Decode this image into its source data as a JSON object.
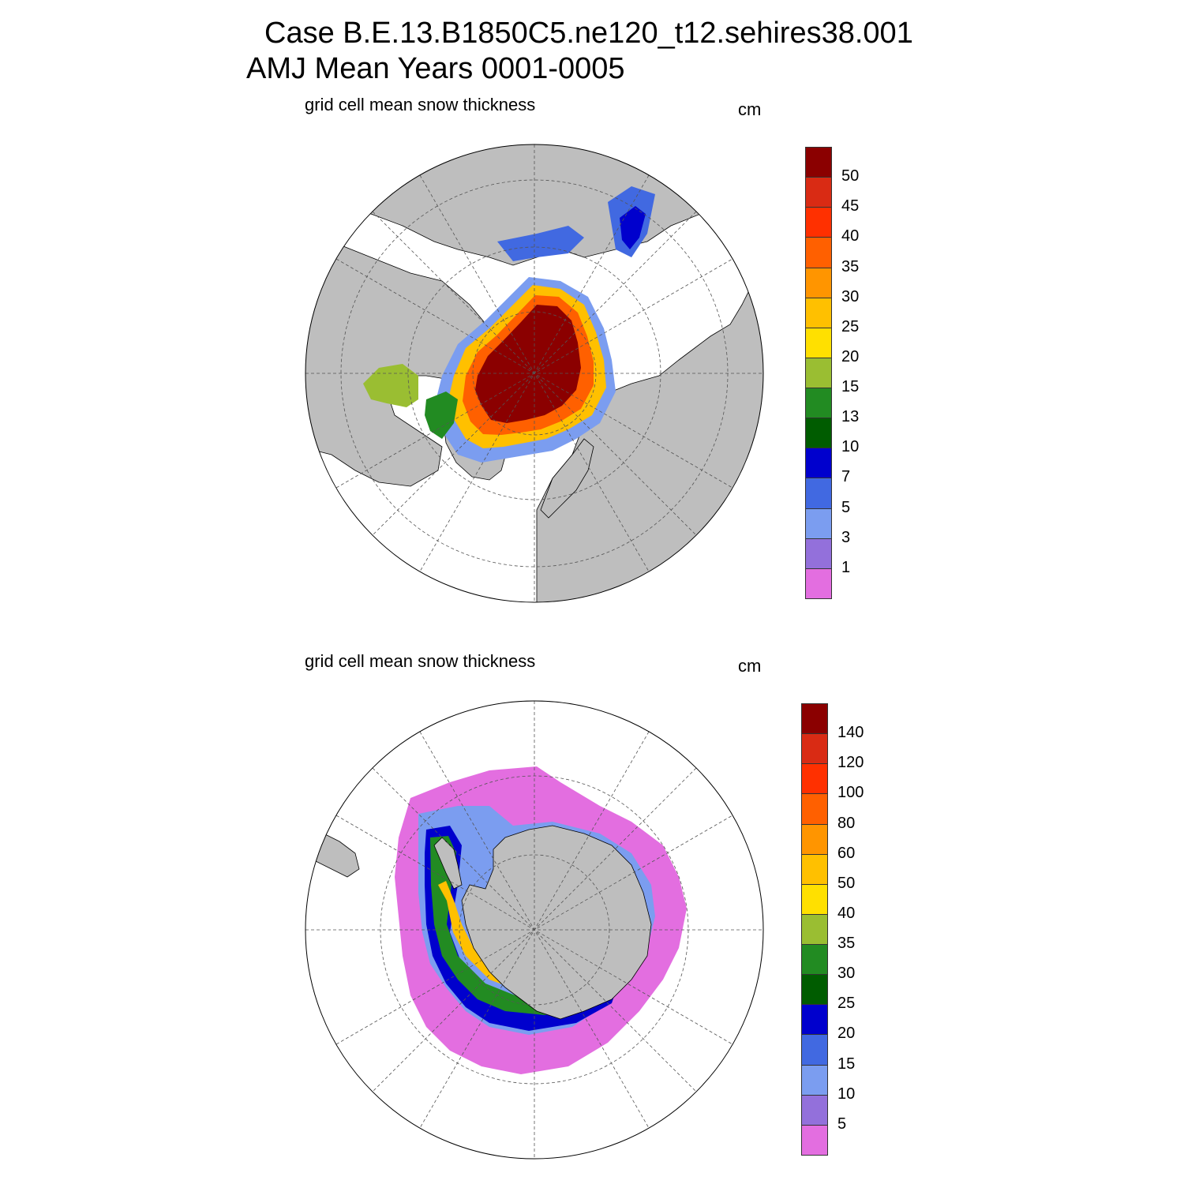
{
  "header": {
    "line1": "Case B.E.13.B1850C5.ne120_t12.sehires38.001",
    "line2": "AMJ Mean    Years 0001-0005"
  },
  "panels": [
    {
      "id": "north",
      "title": "grid cell mean snow thickness",
      "units": "cm",
      "hemisphere": "north",
      "colorbar": {
        "levels": [
          "1",
          "3",
          "5",
          "7",
          "10",
          "13",
          "15",
          "20",
          "25",
          "30",
          "35",
          "40",
          "45",
          "50"
        ],
        "colors": [
          "#e36ee0",
          "#9370db",
          "#7b9df0",
          "#4169e1",
          "#0000cd",
          "#005c00",
          "#228b22",
          "#9abe32",
          "#ffe000",
          "#ffc000",
          "#ff9500",
          "#ff6000",
          "#ff3000",
          "#d92b14",
          "#8b0000"
        ]
      }
    },
    {
      "id": "south",
      "title": "grid cell mean snow thickness",
      "units": "cm",
      "hemisphere": "south",
      "colorbar": {
        "levels": [
          "5",
          "10",
          "15",
          "20",
          "25",
          "30",
          "35",
          "40",
          "50",
          "60",
          "80",
          "100",
          "120",
          "140"
        ],
        "colors": [
          "#e36ee0",
          "#9370db",
          "#7b9df0",
          "#4169e1",
          "#0000cd",
          "#005c00",
          "#228b22",
          "#9abe32",
          "#ffe000",
          "#ffc000",
          "#ff9500",
          "#ff6000",
          "#ff3000",
          "#d92b14",
          "#8b0000"
        ]
      }
    }
  ],
  "colors": {
    "land": "#bebebe",
    "ocean": "#ffffff",
    "grid": "#555555"
  }
}
